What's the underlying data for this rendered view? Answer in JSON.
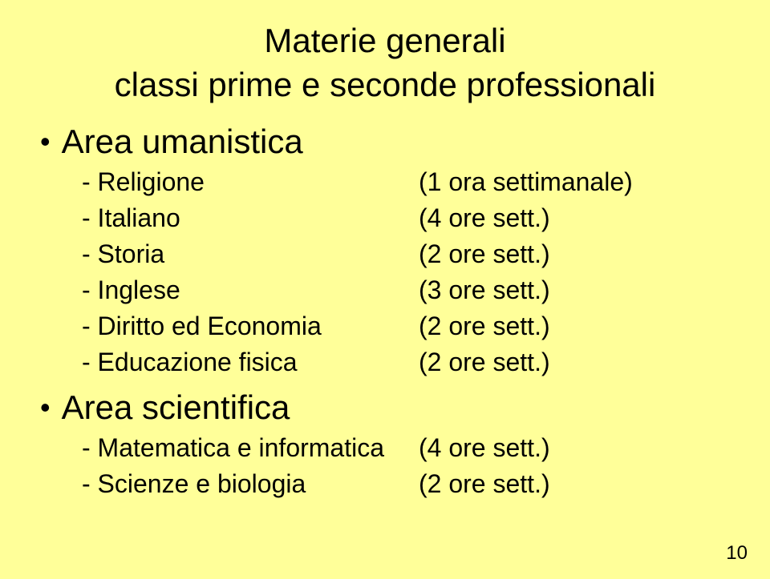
{
  "background_color": "#ffff99",
  "text_color": "#000000",
  "title": {
    "line1": "Materie generali",
    "line2": "classi prime e seconde professionali"
  },
  "areas": [
    {
      "label": "Area umanistica",
      "subjects": [
        {
          "name": "- Religione",
          "hours": "(1 ora settimanale)"
        },
        {
          "name": "- Italiano",
          "hours": "(4 ore sett.)"
        },
        {
          "name": "- Storia",
          "hours": "(2 ore sett.)"
        },
        {
          "name": "- Inglese",
          "hours": "(3 ore sett.)"
        },
        {
          "name": "- Diritto ed Economia",
          "hours": "(2 ore sett.)"
        },
        {
          "name": "- Educazione fisica",
          "hours": "(2 ore sett.)"
        }
      ]
    },
    {
      "label": "Area scientifica",
      "subjects": [
        {
          "name": "- Matematica e informatica",
          "hours": "(4 ore sett.)"
        },
        {
          "name": "- Scienze e biologia",
          "hours": "(2 ore sett.)"
        }
      ]
    }
  ],
  "page_number": "10"
}
